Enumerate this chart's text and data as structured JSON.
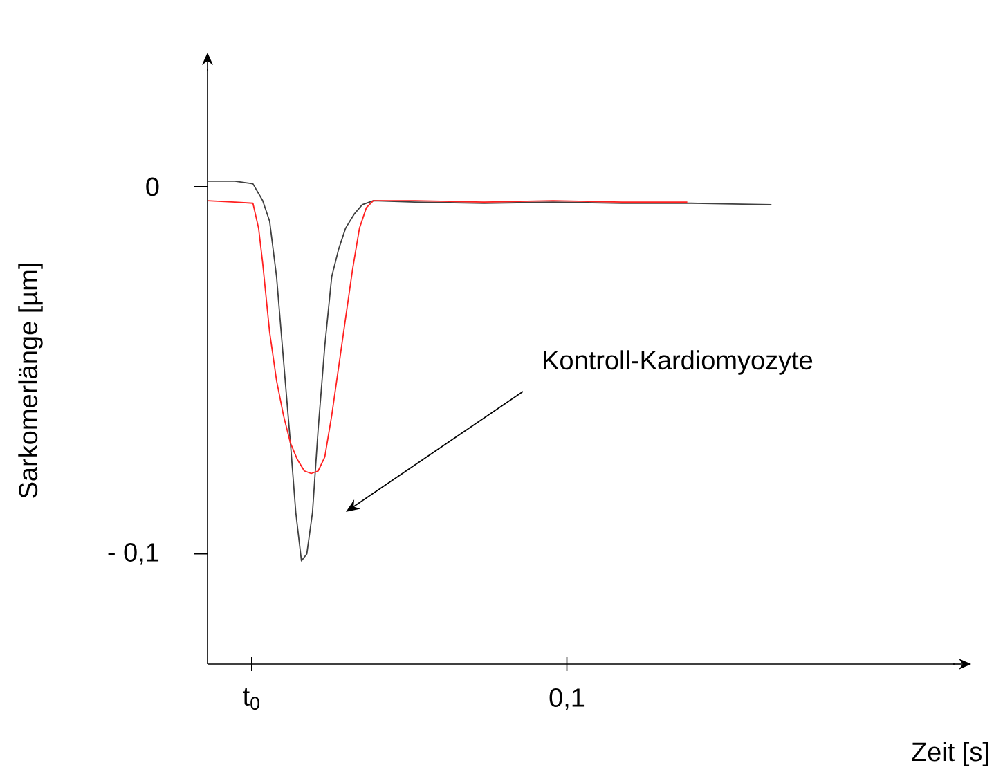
{
  "chart_data": {
    "type": "line",
    "xlabel": "Zeit [s]",
    "ylabel": "Sarkomerlänge [µm]",
    "xlim": [
      -0.014,
      0.223
    ],
    "ylim": [
      -0.13,
      0.032
    ],
    "xticks": [
      {
        "value": 0,
        "label": "t$_{0}$"
      },
      {
        "value": 0.1,
        "label": "0,1"
      }
    ],
    "yticks": [
      {
        "value": -0.1,
        "label": "- 0,1"
      },
      {
        "value": 0,
        "label": "0"
      }
    ],
    "series": [
      {
        "color": "#404040",
        "x": [
          -0.014,
          -0.0053,
          0.0004,
          0.0035,
          0.0057,
          0.0079,
          0.0101,
          0.0123,
          0.014,
          0.0158,
          0.0175,
          0.0193,
          0.0211,
          0.0232,
          0.0254,
          0.0276,
          0.0298,
          0.0325,
          0.0351,
          0.0386,
          0.0518,
          0.0737,
          0.0956,
          0.1175,
          0.1395,
          0.1649
        ],
        "values": [
          0.0015,
          0.0015,
          0.0008,
          -0.0038,
          -0.0094,
          -0.0245,
          -0.0472,
          -0.0698,
          -0.0887,
          -0.1019,
          -0.1,
          -0.0887,
          -0.066,
          -0.0434,
          -0.0245,
          -0.017,
          -0.0113,
          -0.0075,
          -0.0049,
          -0.0038,
          -0.0042,
          -0.0045,
          -0.0042,
          -0.0045,
          -0.0045,
          -0.0049
        ]
      },
      {
        "color": "#ff2020",
        "x": [
          -0.014,
          -0.0053,
          0.0004,
          0.0022,
          0.0035,
          0.0057,
          0.0079,
          0.0101,
          0.0123,
          0.0145,
          0.0167,
          0.0189,
          0.0211,
          0.0232,
          0.0254,
          0.0276,
          0.0298,
          0.032,
          0.0342,
          0.0364,
          0.0386,
          0.0518,
          0.0737,
          0.0956,
          0.1175,
          0.1382
        ],
        "values": [
          -0.0038,
          -0.0042,
          -0.0045,
          -0.0113,
          -0.0208,
          -0.0396,
          -0.0528,
          -0.0623,
          -0.0698,
          -0.0743,
          -0.0774,
          -0.0781,
          -0.0774,
          -0.0736,
          -0.0623,
          -0.0491,
          -0.0358,
          -0.0226,
          -0.0113,
          -0.0057,
          -0.0038,
          -0.0038,
          -0.0042,
          -0.0038,
          -0.0042,
          -0.0042
        ]
      }
    ],
    "annotations": [
      "Kontroll-Kardiomyozyte"
    ]
  }
}
